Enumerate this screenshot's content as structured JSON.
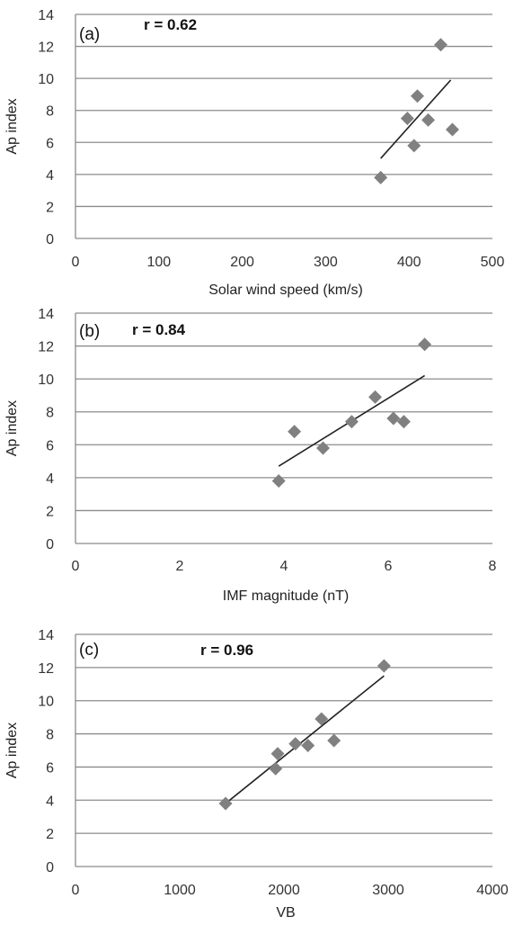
{
  "chart_data": [
    {
      "type": "scatter",
      "panel_label": "(a)",
      "annotation": "r = 0.62",
      "xlabel": "Solar wind speed (km/s)",
      "ylabel": "Ap index",
      "xlim": [
        0,
        500
      ],
      "ylim": [
        0,
        14
      ],
      "xticks": [
        "0",
        "100",
        "200",
        "300",
        "400",
        "500"
      ],
      "yticks": [
        "0",
        "2",
        "4",
        "6",
        "8",
        "10",
        "12",
        "14"
      ],
      "grid": "horizontal",
      "points": [
        {
          "x": 366,
          "y": 3.8
        },
        {
          "x": 398,
          "y": 7.5
        },
        {
          "x": 406,
          "y": 5.8
        },
        {
          "x": 410,
          "y": 8.9
        },
        {
          "x": 423,
          "y": 7.4
        },
        {
          "x": 438,
          "y": 12.1
        },
        {
          "x": 452,
          "y": 6.8
        }
      ],
      "trendline": [
        {
          "x": 366,
          "y": 5.0
        },
        {
          "x": 450,
          "y": 9.9
        }
      ]
    },
    {
      "type": "scatter",
      "panel_label": "(b)",
      "annotation": "r = 0.84",
      "xlabel": "IMF magnitude (nT)",
      "ylabel": "Ap index",
      "xlim": [
        0,
        8
      ],
      "ylim": [
        0,
        14
      ],
      "xticks": [
        "0",
        "2",
        "4",
        "6",
        "8"
      ],
      "yticks": [
        "0",
        "2",
        "4",
        "6",
        "8",
        "10",
        "12",
        "14"
      ],
      "grid": "horizontal",
      "points": [
        {
          "x": 3.9,
          "y": 3.8
        },
        {
          "x": 4.2,
          "y": 6.8
        },
        {
          "x": 4.75,
          "y": 5.8
        },
        {
          "x": 5.3,
          "y": 7.4
        },
        {
          "x": 5.75,
          "y": 8.9
        },
        {
          "x": 6.1,
          "y": 7.6
        },
        {
          "x": 6.3,
          "y": 7.4
        },
        {
          "x": 6.7,
          "y": 12.1
        }
      ],
      "trendline": [
        {
          "x": 3.9,
          "y": 4.7
        },
        {
          "x": 6.7,
          "y": 10.2
        }
      ]
    },
    {
      "type": "scatter",
      "panel_label": "(c)",
      "annotation": "r = 0.96",
      "xlabel": "VB",
      "ylabel": "Ap index",
      "xlim": [
        0,
        4000
      ],
      "ylim": [
        0,
        14
      ],
      "xticks": [
        "0",
        "1000",
        "2000",
        "3000",
        "4000"
      ],
      "yticks": [
        "0",
        "2",
        "4",
        "6",
        "8",
        "10",
        "12",
        "14"
      ],
      "grid": "horizontal",
      "points": [
        {
          "x": 1440,
          "y": 3.8
        },
        {
          "x": 1920,
          "y": 5.9
        },
        {
          "x": 1940,
          "y": 6.8
        },
        {
          "x": 2110,
          "y": 7.4
        },
        {
          "x": 2230,
          "y": 7.3
        },
        {
          "x": 2360,
          "y": 8.9
        },
        {
          "x": 2480,
          "y": 7.6
        },
        {
          "x": 2960,
          "y": 12.1
        }
      ],
      "trendline": [
        {
          "x": 1440,
          "y": 3.8
        },
        {
          "x": 2960,
          "y": 11.5
        }
      ]
    }
  ],
  "colors": {
    "marker": "#808080",
    "gridline": "#8c8c8c",
    "trendline": "#222222",
    "axis": "#8c8c8c"
  }
}
